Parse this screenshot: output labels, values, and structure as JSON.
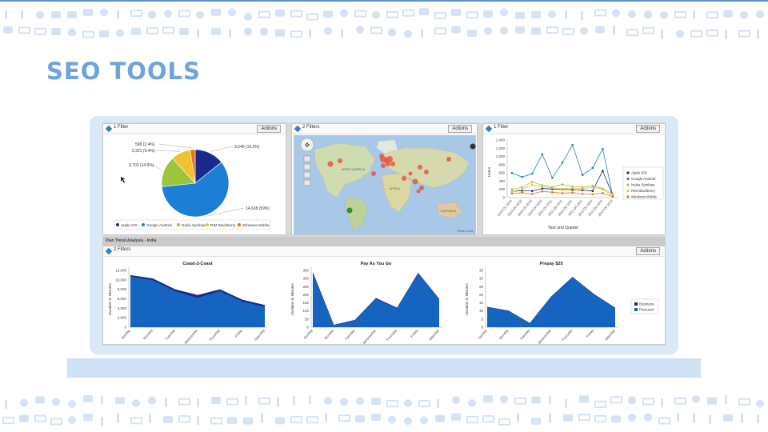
{
  "slide": {
    "title": "SEO TOOLS"
  },
  "panels": {
    "pie": {
      "filter_label": "1 Filter",
      "actions_label": "Actions"
    },
    "map": {
      "filter_label": "2 Filters",
      "actions_label": "Actions",
      "continent_labels": [
        "NORTH AMERICA",
        "AFRICA",
        "AUSTRALIA"
      ],
      "footer": "Terms of Use"
    },
    "line": {
      "filter_label": "1 Filter",
      "actions_label": "Actions"
    },
    "bottom": {
      "title": "Plan Trend Analysis - India",
      "filter_label": "2 Filters",
      "actions_label": "Actions"
    }
  },
  "colors": {
    "apple": "#1a2a8c",
    "google": "#1d7ed6",
    "nokia": "#9bc53d",
    "rim": "#f2c12e",
    "windows": "#e8731c",
    "business": "#1a2a8c",
    "personal": "#1565c0",
    "accent": "#6ea3dc"
  },
  "chart_data": [
    {
      "type": "pie",
      "title": "",
      "slices": [
        {
          "name": "Apple iOS",
          "value": 3546,
          "label": "3,546 (14.3%)"
        },
        {
          "name": "Google Android",
          "value": 14628,
          "label": "14,628 (59%)"
        },
        {
          "name": "Nokia Symbian",
          "value": 3701,
          "label": "3,701 (14.9%)"
        },
        {
          "name": "RIM Blackberry",
          "value": 2321,
          "label": "2,321 (9.4%)"
        },
        {
          "name": "Windows Mobile",
          "value": 598,
          "label": "598 (2.4%)"
        }
      ],
      "legend_placement": "bottom"
    },
    {
      "type": "line",
      "title": "",
      "xlabel": "Year and Quarter",
      "ylabel": "Users",
      "ylim": [
        0,
        1400
      ],
      "yticks": [
        "0",
        "200",
        "400",
        "600",
        "800",
        "1,000",
        "1,200",
        "1,400"
      ],
      "categories": [
        "2010-Q1 2010",
        "2010-Q2 2010",
        "2010-Q3 2010",
        "2010-Q4 2010",
        "2011-Q1 2011",
        "2011-Q2 2011",
        "2011-Q3 2011",
        "2011-Q4 2011",
        "2012-Q1 2012",
        "2012-Q2 2012",
        "2012-Q3 2012"
      ],
      "series": [
        {
          "name": "Apple iOS",
          "values": [
            150,
            170,
            160,
            220,
            210,
            200,
            190,
            180,
            160,
            650,
            50
          ]
        },
        {
          "name": "Google Android",
          "values": [
            600,
            500,
            580,
            1050,
            480,
            850,
            1280,
            550,
            720,
            1180,
            50
          ]
        },
        {
          "name": "Nokia Symbian",
          "values": [
            200,
            250,
            380,
            300,
            260,
            320,
            270,
            250,
            290,
            220,
            80
          ]
        },
        {
          "name": "RIM Blackberry",
          "values": [
            150,
            200,
            310,
            260,
            240,
            210,
            230,
            220,
            250,
            200,
            40
          ]
        },
        {
          "name": "Windows Mobile",
          "values": [
            100,
            120,
            90,
            150,
            130,
            110,
            120,
            90,
            80,
            110,
            20
          ]
        }
      ],
      "legend_placement": "right"
    },
    {
      "type": "area",
      "title": "Coast-2-Coast",
      "ylabel": "Duration in Minutes",
      "ylim": [
        0,
        12000
      ],
      "yticks": [
        "0",
        "2,000",
        "4,000",
        "6,000",
        "8,000",
        "10,000",
        "12,000"
      ],
      "categories": [
        "Sunday",
        "Monday",
        "Tuesday",
        "Wednesday",
        "Thursday",
        "Friday",
        "Saturday"
      ],
      "series": [
        {
          "name": "Business",
          "values": [
            11000,
            10300,
            8000,
            6800,
            8000,
            5800,
            4700
          ]
        },
        {
          "name": "Personal",
          "values": [
            10700,
            9900,
            7600,
            6200,
            7600,
            5400,
            4300
          ]
        }
      ]
    },
    {
      "type": "area",
      "title": "Pay As You Go",
      "ylabel": "Duration in Minutes",
      "ylim": [
        0,
        350
      ],
      "yticks": [
        "0",
        "50",
        "100",
        "150",
        "200",
        "250",
        "300",
        "350"
      ],
      "categories": [
        "Sunday",
        "Monday",
        "Tuesday",
        "Wednesday",
        "Thursday",
        "Friday",
        "Saturday"
      ],
      "series": [
        {
          "name": "Business",
          "values": [
            340,
            15,
            45,
            180,
            120,
            335,
            175
          ]
        },
        {
          "name": "Personal",
          "values": [
            330,
            12,
            42,
            175,
            115,
            330,
            170
          ]
        }
      ]
    },
    {
      "type": "area",
      "title": "Prepay $25",
      "ylabel": "Duration in Minutes",
      "ylim": [
        0,
        35
      ],
      "yticks": [
        "0",
        "5",
        "10",
        "15",
        "20",
        "25",
        "30",
        "35"
      ],
      "categories": [
        "Sunday",
        "Monday",
        "Tuesday",
        "Wednesday",
        "Thursday",
        "Friday",
        "Saturday"
      ],
      "series": [
        {
          "name": "Business",
          "values": [
            12.6,
            10.2,
            2.6,
            19,
            31,
            20.5,
            12
          ]
        },
        {
          "name": "Personal",
          "values": [
            12.3,
            9.9,
            2.4,
            18.7,
            30.7,
            20.2,
            11.7
          ]
        }
      ],
      "legend": [
        "Business",
        "Personal"
      ],
      "legend_placement": "right"
    }
  ]
}
